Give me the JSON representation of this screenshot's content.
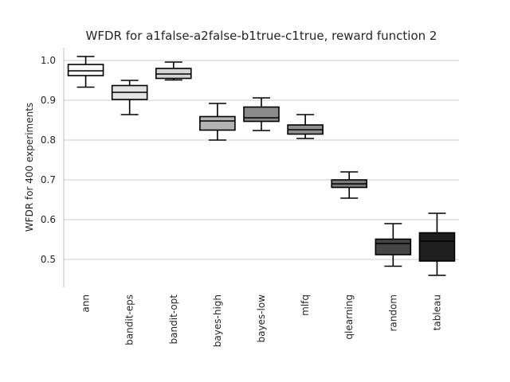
{
  "chart_data": {
    "type": "box",
    "title": "WFDR for a1false-a2false-b1true-c1true, reward function 2",
    "xlabel": "",
    "ylabel": "WFDR for 400 experiments",
    "ylim": [
      0.43,
      1.03
    ],
    "yticks": [
      "0.5",
      "0.6",
      "0.7",
      "0.8",
      "0.9",
      "1.0"
    ],
    "grid": "horizontal",
    "categories": [
      "ann",
      "bandit-eps",
      "bandit-opt",
      "bayes-high",
      "bayes-low",
      "mlfq",
      "qlearning",
      "random",
      "tableau"
    ],
    "boxes": [
      {
        "category": "ann",
        "whisker_low": 0.933,
        "q1": 0.962,
        "median": 0.974,
        "q3": 0.99,
        "whisker_high": 1.01,
        "color": "#f7f7f7"
      },
      {
        "category": "bandit-eps",
        "whisker_low": 0.864,
        "q1": 0.902,
        "median": 0.92,
        "q3": 0.937,
        "whisker_high": 0.95,
        "color": "#e3e3e3"
      },
      {
        "category": "bandit-opt",
        "whisker_low": 0.951,
        "q1": 0.955,
        "median": 0.966,
        "q3": 0.98,
        "whisker_high": 0.996,
        "color": "#d4d4d4"
      },
      {
        "category": "bayes-high",
        "whisker_low": 0.8,
        "q1": 0.825,
        "median": 0.848,
        "q3": 0.859,
        "whisker_high": 0.892,
        "color": "#b3b3b3"
      },
      {
        "category": "bayes-low",
        "whisker_low": 0.824,
        "q1": 0.847,
        "median": 0.856,
        "q3": 0.883,
        "whisker_high": 0.906,
        "color": "#8a8a8a"
      },
      {
        "category": "mlfq",
        "whisker_low": 0.804,
        "q1": 0.815,
        "median": 0.826,
        "q3": 0.838,
        "whisker_high": 0.864,
        "color": "#8f8f8f"
      },
      {
        "category": "qlearning",
        "whisker_low": 0.654,
        "q1": 0.681,
        "median": 0.69,
        "q3": 0.7,
        "whisker_high": 0.72,
        "color": "#7b7b7b"
      },
      {
        "category": "random",
        "whisker_low": 0.483,
        "q1": 0.512,
        "median": 0.54,
        "q3": 0.551,
        "whisker_high": 0.59,
        "color": "#454545"
      },
      {
        "category": "tableau",
        "whisker_low": 0.46,
        "q1": 0.496,
        "median": 0.546,
        "q3": 0.567,
        "whisker_high": 0.616,
        "color": "#1e1e1e"
      }
    ]
  }
}
